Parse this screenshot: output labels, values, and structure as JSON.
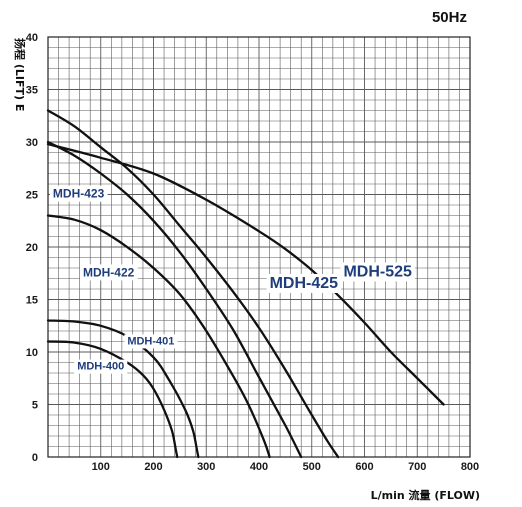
{
  "chart_data": {
    "type": "line",
    "frequency_label": "50Hz",
    "xlabel": "L/min 流量 (FLOW)",
    "ylabel": "扬程 (LIFT) E",
    "xlim": [
      0,
      800
    ],
    "ylim": [
      0,
      40
    ],
    "x_ticks": [
      100,
      200,
      300,
      400,
      500,
      600,
      700,
      800
    ],
    "y_ticks": [
      0,
      5,
      10,
      15,
      20,
      25,
      30,
      35,
      40
    ],
    "grid": true,
    "line_color": "#111111",
    "label_color": "#1f3d7a",
    "series": [
      {
        "name": "MDH-400",
        "points": [
          [
            0,
            11
          ],
          [
            50,
            10.9
          ],
          [
            100,
            10.3
          ],
          [
            150,
            9
          ],
          [
            180,
            7.8
          ],
          [
            200,
            6.5
          ],
          [
            220,
            4.5
          ],
          [
            235,
            2.5
          ],
          [
            243,
            0.5
          ],
          [
            245,
            0
          ]
        ]
      },
      {
        "name": "MDH-401",
        "points": [
          [
            0,
            13
          ],
          [
            50,
            12.9
          ],
          [
            100,
            12.5
          ],
          [
            150,
            11.5
          ],
          [
            200,
            9.5
          ],
          [
            230,
            7.3
          ],
          [
            260,
            4.5
          ],
          [
            275,
            2.5
          ],
          [
            283,
            0.5
          ],
          [
            285,
            0
          ]
        ]
      },
      {
        "name": "MDH-422",
        "points": [
          [
            0,
            23
          ],
          [
            50,
            22.6
          ],
          [
            100,
            21.6
          ],
          [
            150,
            20
          ],
          [
            200,
            18
          ],
          [
            250,
            15.5
          ],
          [
            300,
            12
          ],
          [
            350,
            7.8
          ],
          [
            380,
            5
          ],
          [
            410,
            1.5
          ],
          [
            420,
            0
          ]
        ]
      },
      {
        "name": "MDH-423",
        "points": [
          [
            0,
            30
          ],
          [
            50,
            28.7
          ],
          [
            100,
            27
          ],
          [
            150,
            25
          ],
          [
            200,
            22.5
          ],
          [
            250,
            19.5
          ],
          [
            300,
            16
          ],
          [
            350,
            12.2
          ],
          [
            400,
            7.6
          ],
          [
            450,
            3
          ],
          [
            480,
            0
          ]
        ]
      },
      {
        "name": "MDH-425",
        "points": [
          [
            0,
            33
          ],
          [
            50,
            31.5
          ],
          [
            100,
            29.5
          ],
          [
            150,
            27.5
          ],
          [
            200,
            25
          ],
          [
            250,
            22
          ],
          [
            300,
            19
          ],
          [
            350,
            15.8
          ],
          [
            400,
            12.3
          ],
          [
            450,
            8.3
          ],
          [
            500,
            4
          ],
          [
            530,
            1.5
          ],
          [
            550,
            0
          ]
        ]
      },
      {
        "name": "MDH-525",
        "points": [
          [
            0,
            29.8
          ],
          [
            100,
            28.5
          ],
          [
            200,
            27
          ],
          [
            300,
            24.5
          ],
          [
            400,
            21.5
          ],
          [
            450,
            19.8
          ],
          [
            500,
            17.8
          ],
          [
            550,
            15.4
          ],
          [
            600,
            12.8
          ],
          [
            650,
            10
          ],
          [
            700,
            7.5
          ],
          [
            750,
            5
          ]
        ]
      }
    ],
    "curve_labels": [
      {
        "text": "MDH-423",
        "x": 58,
        "y": 25,
        "size": 12
      },
      {
        "text": "MDH-422",
        "x": 115,
        "y": 17.5,
        "size": 12
      },
      {
        "text": "MDH-401",
        "x": 195,
        "y": 11,
        "size": 11
      },
      {
        "text": "MDH-400",
        "x": 100,
        "y": 8.6,
        "size": 11
      },
      {
        "text": "MDH-425",
        "x": 485,
        "y": 16.5,
        "size": 16
      },
      {
        "text": "MDH-525",
        "x": 625,
        "y": 17.6,
        "size": 16
      }
    ]
  }
}
